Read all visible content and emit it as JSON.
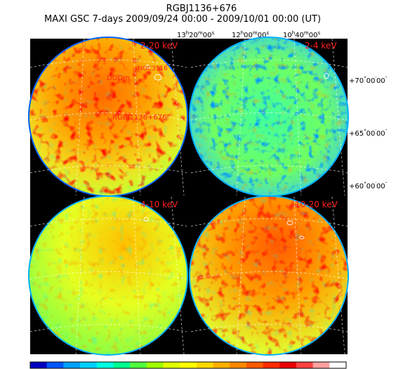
{
  "header": {
    "source_name": "RGBJ1136+676",
    "observation": "MAXI GSC 7-days 2009/09/24 00:00 - 2009/10/01 00:00 (UT)"
  },
  "ra_labels": [
    {
      "h": "13",
      "m": "20",
      "s": "00"
    },
    {
      "h": "12",
      "m": "00",
      "s": "00"
    },
    {
      "h": "10",
      "m": "40",
      "s": "00"
    }
  ],
  "dec_labels": [
    {
      "d": "+70",
      "m": "00",
      "s": "00"
    },
    {
      "d": "+65",
      "m": "00",
      "s": "00"
    },
    {
      "d": "+60",
      "m": "00",
      "s": "00"
    }
  ],
  "panels": [
    {
      "band": "2-20 keV",
      "base": "#ff9a00",
      "scheme": "warm"
    },
    {
      "band": "2-4 keV",
      "base": "#4cff8a",
      "scheme": "cool"
    },
    {
      "band": "4-10 keV",
      "base": "#d8ff30",
      "scheme": "mid"
    },
    {
      "band": "10-20 keV",
      "base": "#ff9a00",
      "scheme": "warm2"
    }
  ],
  "source_labels": [
    "RGBJ1136+676",
    "DODm",
    "NGC3516"
  ],
  "colorbar": [
    "#0000c0",
    "#0055ff",
    "#00a0ff",
    "#00d0ff",
    "#00ffe0",
    "#00ff90",
    "#50ff40",
    "#a0ff00",
    "#e0ff00",
    "#ffff00",
    "#ffd800",
    "#ffb000",
    "#ff8800",
    "#ff5a00",
    "#ff2a00",
    "#e80000",
    "#ff4040",
    "#ffa0a0",
    "#ffffff"
  ]
}
